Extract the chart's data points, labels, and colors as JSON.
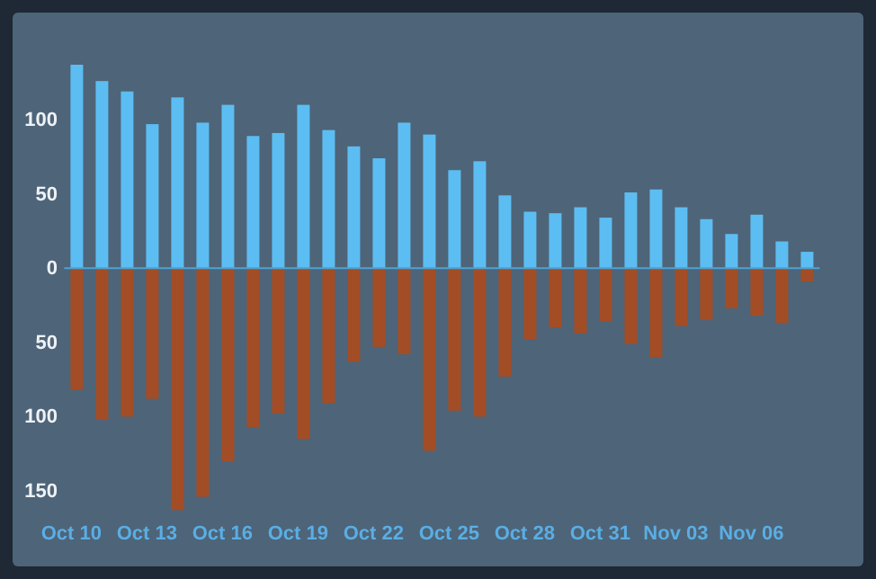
{
  "chart_data": {
    "type": "bar",
    "stacked": true,
    "categories": [
      "Oct 10",
      null,
      null,
      "Oct 13",
      null,
      null,
      "Oct 16",
      null,
      null,
      "Oct 19",
      null,
      null,
      "Oct 22",
      null,
      null,
      "Oct 25",
      null,
      null,
      "Oct 28",
      null,
      null,
      "Oct 31",
      null,
      null,
      "Nov 03",
      null,
      null,
      "Nov 06",
      null,
      null
    ],
    "series": [
      {
        "color": "#5cbdf2",
        "values": [
          137,
          126,
          119,
          97,
          115,
          98,
          110,
          89,
          91,
          110,
          93,
          82,
          74,
          98,
          90,
          66,
          72,
          49,
          38,
          37,
          41,
          34,
          51,
          53,
          41,
          33,
          23,
          36,
          18,
          11
        ]
      },
      {
        "color": "#a34d26",
        "values": [
          -82,
          -102,
          -100,
          -88,
          -163,
          -154,
          -130,
          -107,
          -98,
          -115,
          -91,
          -63,
          -53,
          -58,
          -123,
          -96,
          -100,
          -73,
          -48,
          -40,
          -44,
          -36,
          -51,
          -60,
          -39,
          -35,
          -27,
          -32,
          -37,
          -9
        ]
      }
    ],
    "ylim": [
      -163,
      137
    ],
    "ref_lines": [
      {
        "axis": "y",
        "value": 0,
        "color": "#4aa3d6"
      }
    ],
    "yticks": [
      {
        "value": -150,
        "label": "150"
      },
      {
        "value": -100,
        "label": "100"
      },
      {
        "value": -50,
        "label": "50"
      },
      0,
      50,
      100
    ],
    "grid": false
  }
}
